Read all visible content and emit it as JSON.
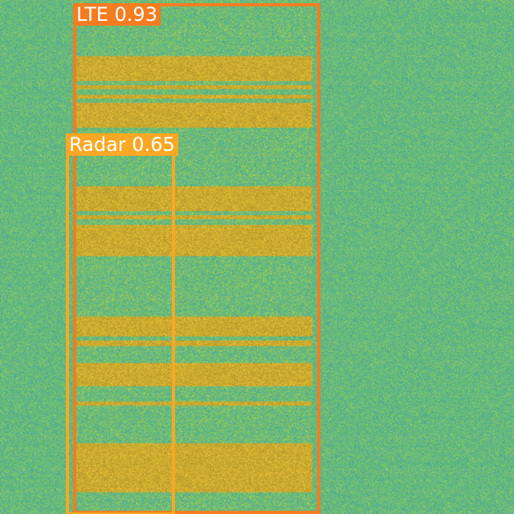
{
  "detections": [
    {
      "label": "LTE 0.93",
      "class": "LTE",
      "confidence": 0.93,
      "color": "#f47c21"
    },
    {
      "label": "Radar 0.65",
      "class": "Radar",
      "confidence": 0.65,
      "color": "#f9a825"
    }
  ],
  "colors": {
    "background_green": "#5cbf5a",
    "signal_yellow": "#f2c53a"
  }
}
